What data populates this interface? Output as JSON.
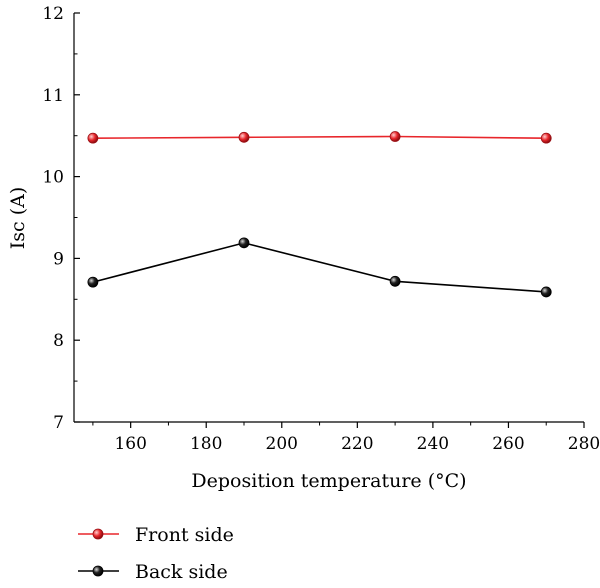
{
  "chart_data": {
    "type": "line",
    "title": "",
    "xlabel": "Deposition temperature (°C)",
    "ylabel": "Isc (A)",
    "xlim": [
      145,
      280
    ],
    "ylim": [
      7,
      12
    ],
    "xticks": [
      160,
      180,
      200,
      220,
      240,
      260,
      280
    ],
    "yticks": [
      7,
      8,
      9,
      10,
      11,
      12
    ],
    "grid": false,
    "legend_position": "bottom",
    "x": [
      150,
      190,
      230,
      270
    ],
    "series": [
      {
        "name": "Front side",
        "values": [
          10.47,
          10.48,
          10.49,
          10.47
        ],
        "color": "#e8262b"
      },
      {
        "name": "Back side",
        "values": [
          8.71,
          9.19,
          8.72,
          8.59
        ],
        "color": "#000000"
      }
    ]
  }
}
